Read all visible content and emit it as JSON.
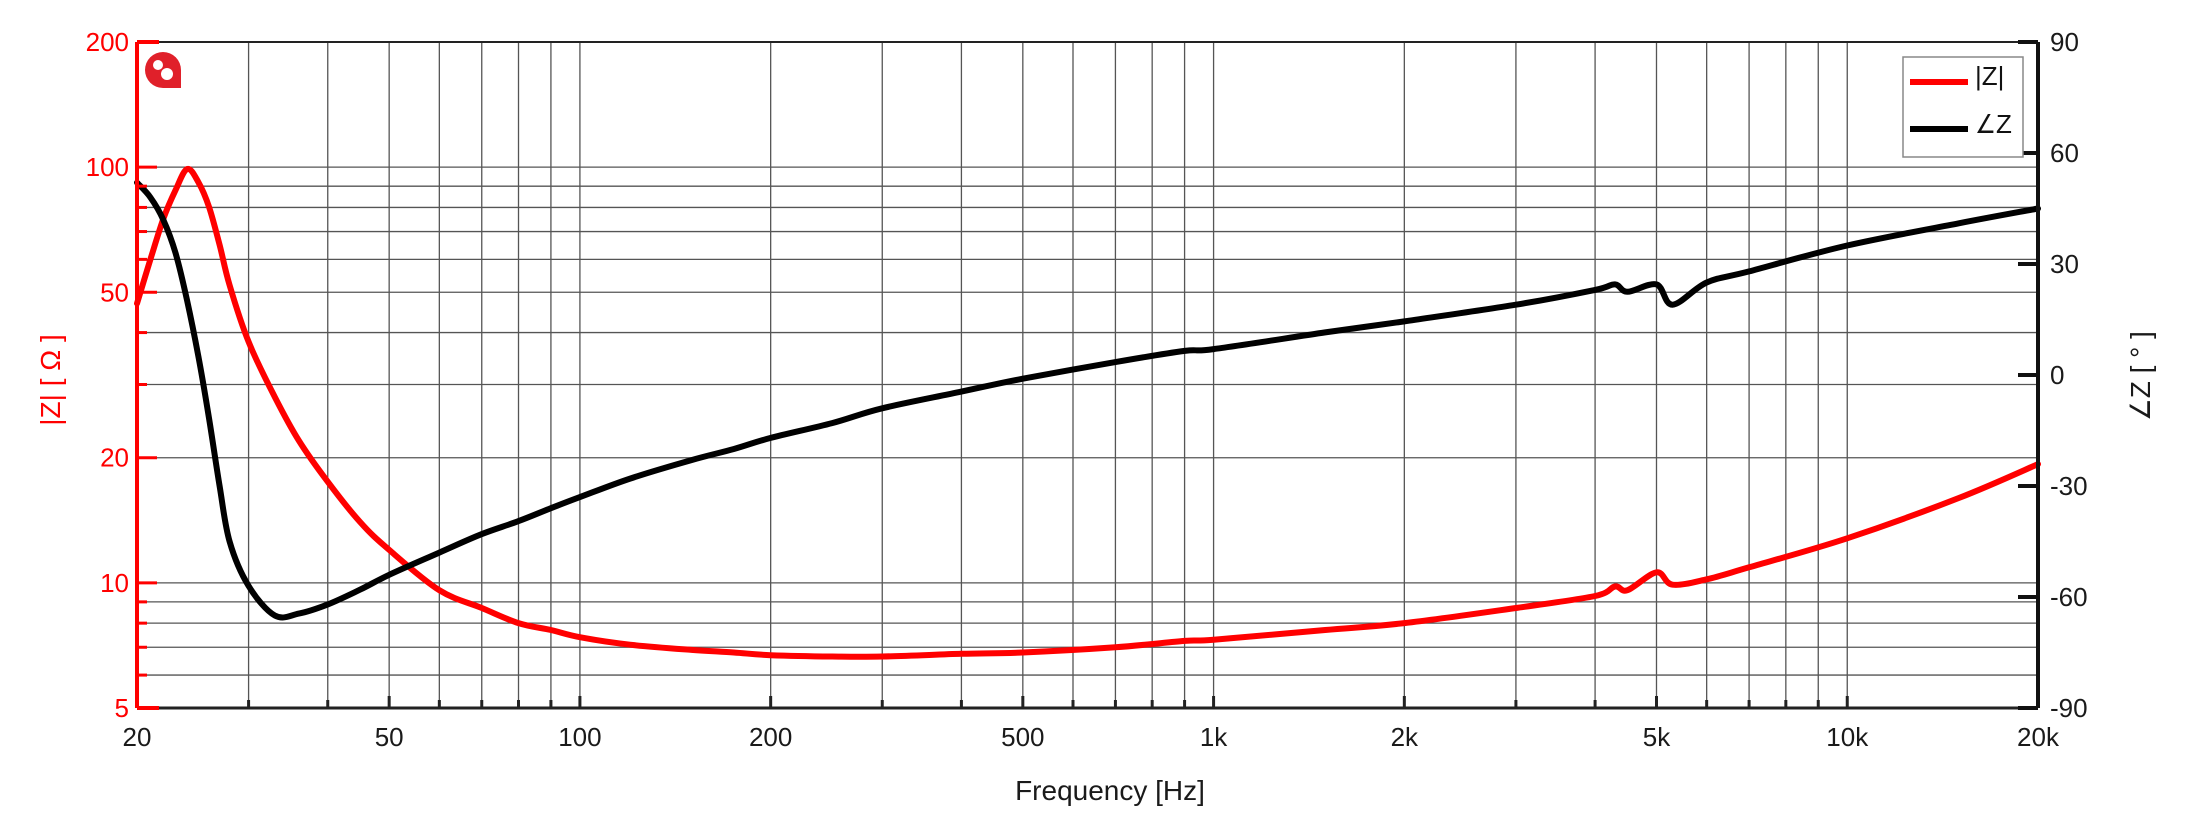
{
  "chart_data": {
    "type": "line",
    "title": "",
    "xlabel": "Frequency [Hz]",
    "ylabel_left": "|Z| [ Ω ]",
    "ylabel_right": "∠Z [ ° ]",
    "x_scale": "log",
    "xlim": [
      20,
      20000
    ],
    "ylim_left": [
      5,
      200
    ],
    "y_scale_left": "log",
    "ylim_right": [
      -90,
      90
    ],
    "grid": true,
    "legend_position": "top-right",
    "x_ticks": [
      {
        "value": 20,
        "label": "20"
      },
      {
        "value": 50,
        "label": "50"
      },
      {
        "value": 100,
        "label": "100"
      },
      {
        "value": 200,
        "label": "200"
      },
      {
        "value": 500,
        "label": "500"
      },
      {
        "value": 1000,
        "label": "1k"
      },
      {
        "value": 2000,
        "label": "2k"
      },
      {
        "value": 5000,
        "label": "5k"
      },
      {
        "value": 10000,
        "label": "10k"
      },
      {
        "value": 20000,
        "label": "20k"
      }
    ],
    "y_ticks_left": [
      {
        "value": 5,
        "label": "5"
      },
      {
        "value": 10,
        "label": "10"
      },
      {
        "value": 20,
        "label": "20"
      },
      {
        "value": 50,
        "label": "50"
      },
      {
        "value": 100,
        "label": "100"
      },
      {
        "value": 200,
        "label": "200"
      }
    ],
    "y_ticks_right": [
      {
        "value": -90,
        "label": "-90"
      },
      {
        "value": -60,
        "label": "-60"
      },
      {
        "value": -30,
        "label": "-30"
      },
      {
        "value": 0,
        "label": "0"
      },
      {
        "value": 30,
        "label": "30"
      },
      {
        "value": 60,
        "label": "60"
      },
      {
        "value": 90,
        "label": "90"
      }
    ],
    "x": [
      20,
      21,
      22,
      23,
      24,
      25,
      26,
      27,
      28,
      30,
      33,
      36,
      40,
      45,
      50,
      60,
      70,
      80,
      90,
      100,
      120,
      150,
      175,
      200,
      250,
      300,
      400,
      500,
      700,
      900,
      1000,
      1500,
      2000,
      3000,
      4000,
      4300,
      4500,
      5000,
      5300,
      6000,
      7000,
      10000,
      15000,
      20000
    ],
    "series": [
      {
        "name": "|Z|",
        "axis": "left",
        "color": "#ff0000",
        "values": [
          47,
          60,
          75,
          88,
          99,
          92,
          80,
          65,
          52,
          38,
          28,
          22,
          17.5,
          14,
          12,
          9.6,
          8.7,
          8.0,
          7.7,
          7.4,
          7.1,
          6.9,
          6.8,
          6.7,
          6.65,
          6.65,
          6.75,
          6.8,
          7.0,
          7.25,
          7.3,
          7.7,
          8.0,
          8.7,
          9.3,
          9.8,
          9.6,
          10.6,
          9.9,
          10.2,
          10.9,
          12.8,
          16.0,
          19.3
        ]
      },
      {
        "name": "∠Z",
        "axis": "right",
        "color": "#000000",
        "values": [
          52,
          48,
          42,
          33,
          20,
          5,
          -12,
          -30,
          -45,
          -57,
          -65,
          -64.5,
          -62,
          -58,
          -54,
          -48,
          -43,
          -39.5,
          -36,
          -33,
          -28,
          -23,
          -20,
          -17,
          -13,
          -9,
          -4.5,
          -1,
          3.5,
          6.5,
          7,
          11.5,
          14.5,
          19,
          23,
          24.5,
          22.5,
          24.5,
          19,
          25,
          28,
          35,
          41,
          45
        ]
      }
    ]
  },
  "legend": {
    "items": [
      {
        "label": "|Z|",
        "color": "#ff0000"
      },
      {
        "label": "∠Z",
        "color": "#000000"
      }
    ]
  },
  "logo": {
    "icon": "brand-logo-icon",
    "color": "#e0202a"
  }
}
